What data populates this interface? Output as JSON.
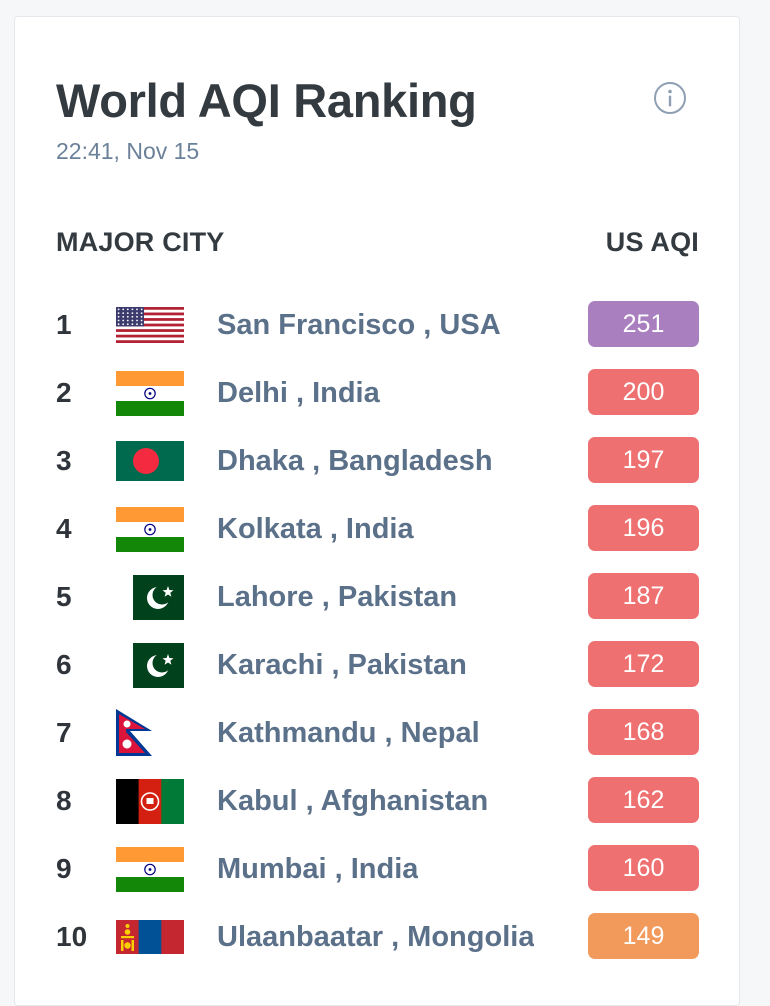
{
  "header": {
    "title": "World AQI Ranking",
    "timestamp": "22:41, Nov 15",
    "info_icon": "info-circle-icon"
  },
  "table": {
    "col_city": "MAJOR CITY",
    "col_aqi": "US AQI"
  },
  "colors": {
    "very_unhealthy": "#a97fc0",
    "unhealthy": "#ee7070",
    "unhealthy_sensitive": "#f19a5c",
    "title_text": "#333a40",
    "city_text": "#5b7089"
  },
  "rows": [
    {
      "rank": "1",
      "city": "San Francisco , USA",
      "aqi": "251",
      "flag": "usa-flag-icon",
      "level": "very_unhealthy"
    },
    {
      "rank": "2",
      "city": "Delhi , India",
      "aqi": "200",
      "flag": "india-flag-icon",
      "level": "unhealthy"
    },
    {
      "rank": "3",
      "city": "Dhaka , Bangladesh",
      "aqi": "197",
      "flag": "bangladesh-flag-icon",
      "level": "unhealthy"
    },
    {
      "rank": "4",
      "city": "Kolkata , India",
      "aqi": "196",
      "flag": "india-flag-icon",
      "level": "unhealthy"
    },
    {
      "rank": "5",
      "city": "Lahore , Pakistan",
      "aqi": "187",
      "flag": "pakistan-flag-icon",
      "level": "unhealthy"
    },
    {
      "rank": "6",
      "city": "Karachi , Pakistan",
      "aqi": "172",
      "flag": "pakistan-flag-icon",
      "level": "unhealthy"
    },
    {
      "rank": "7",
      "city": "Kathmandu , Nepal",
      "aqi": "168",
      "flag": "nepal-flag-icon",
      "level": "unhealthy"
    },
    {
      "rank": "8",
      "city": "Kabul , Afghanistan",
      "aqi": "162",
      "flag": "afghanistan-flag-icon",
      "level": "unhealthy"
    },
    {
      "rank": "9",
      "city": "Mumbai , India",
      "aqi": "160",
      "flag": "india-flag-icon",
      "level": "unhealthy"
    },
    {
      "rank": "10",
      "city": "Ulaanbaatar , Mongolia",
      "aqi": "149",
      "flag": "mongolia-flag-icon",
      "level": "unhealthy_sensitive"
    }
  ]
}
